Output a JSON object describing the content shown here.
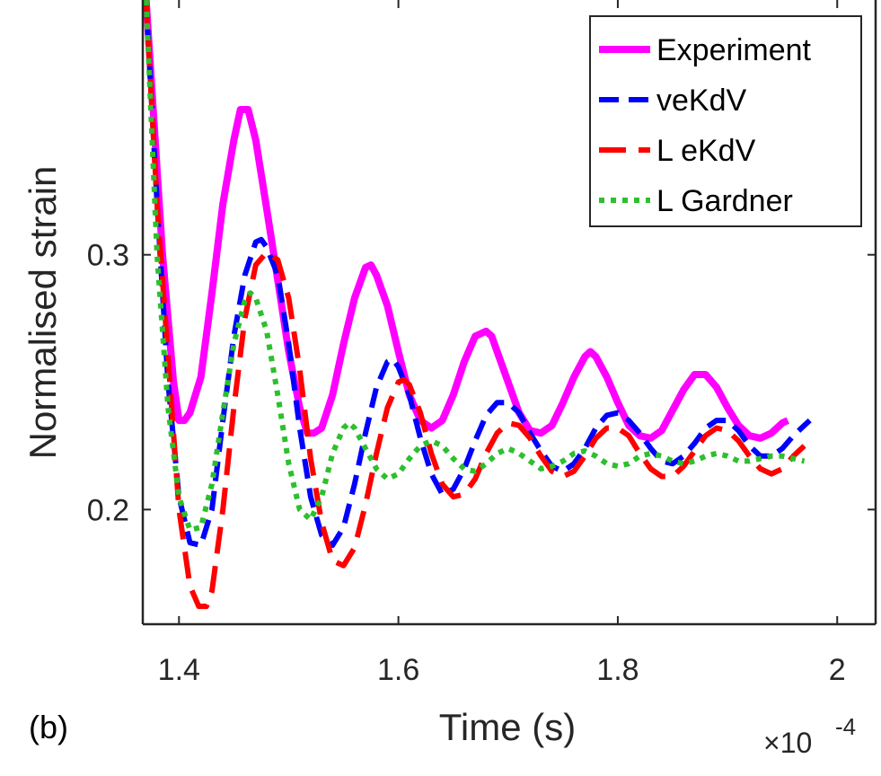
{
  "chart_data": {
    "type": "line",
    "title": "",
    "xlabel": "Time (s)",
    "ylabel": "Normalised strain",
    "panel_label": "(b)",
    "x_multiplier": {
      "base": "×10",
      "exponent": "-4"
    },
    "xlim": [
      1.367,
      2.035
    ],
    "ylim": [
      0.155,
      0.4
    ],
    "x_ticks": [
      1.4,
      1.6,
      1.8,
      2.0
    ],
    "x_tick_labels": [
      "1.4",
      "1.6",
      "1.8",
      "2"
    ],
    "y_ticks": [
      0.2,
      0.3
    ],
    "y_tick_labels": [
      "0.2",
      "0.3"
    ],
    "legend_location": "top-right",
    "series": [
      {
        "name": "Experiment",
        "color": "#ff00ff",
        "style": "solid",
        "points": [
          [
            1.37,
            0.4
          ],
          [
            1.385,
            0.3
          ],
          [
            1.395,
            0.25
          ],
          [
            1.4,
            0.235
          ],
          [
            1.405,
            0.235
          ],
          [
            1.41,
            0.238
          ],
          [
            1.42,
            0.252
          ],
          [
            1.43,
            0.285
          ],
          [
            1.44,
            0.32
          ],
          [
            1.45,
            0.345
          ],
          [
            1.456,
            0.357
          ],
          [
            1.463,
            0.357
          ],
          [
            1.47,
            0.345
          ],
          [
            1.48,
            0.318
          ],
          [
            1.49,
            0.29
          ],
          [
            1.5,
            0.262
          ],
          [
            1.51,
            0.24
          ],
          [
            1.517,
            0.23
          ],
          [
            1.523,
            0.23
          ],
          [
            1.53,
            0.232
          ],
          [
            1.54,
            0.245
          ],
          [
            1.55,
            0.265
          ],
          [
            1.56,
            0.283
          ],
          [
            1.57,
            0.295
          ],
          [
            1.575,
            0.296
          ],
          [
            1.58,
            0.292
          ],
          [
            1.59,
            0.28
          ],
          [
            1.6,
            0.262
          ],
          [
            1.61,
            0.245
          ],
          [
            1.62,
            0.235
          ],
          [
            1.63,
            0.232
          ],
          [
            1.64,
            0.235
          ],
          [
            1.65,
            0.245
          ],
          [
            1.66,
            0.258
          ],
          [
            1.67,
            0.268
          ],
          [
            1.68,
            0.27
          ],
          [
            1.685,
            0.268
          ],
          [
            1.69,
            0.262
          ],
          [
            1.7,
            0.25
          ],
          [
            1.71,
            0.238
          ],
          [
            1.72,
            0.231
          ],
          [
            1.73,
            0.23
          ],
          [
            1.74,
            0.233
          ],
          [
            1.75,
            0.242
          ],
          [
            1.76,
            0.252
          ],
          [
            1.77,
            0.26
          ],
          [
            1.775,
            0.262
          ],
          [
            1.78,
            0.26
          ],
          [
            1.79,
            0.252
          ],
          [
            1.8,
            0.242
          ],
          [
            1.81,
            0.233
          ],
          [
            1.82,
            0.229
          ],
          [
            1.83,
            0.228
          ],
          [
            1.84,
            0.231
          ],
          [
            1.85,
            0.239
          ],
          [
            1.86,
            0.247
          ],
          [
            1.87,
            0.253
          ],
          [
            1.88,
            0.253
          ],
          [
            1.89,
            0.248
          ],
          [
            1.9,
            0.24
          ],
          [
            1.91,
            0.233
          ],
          [
            1.92,
            0.229
          ],
          [
            1.93,
            0.228
          ],
          [
            1.94,
            0.23
          ],
          [
            1.95,
            0.234
          ],
          [
            1.955,
            0.235
          ]
        ]
      },
      {
        "name": "veKdV",
        "color": "#0000ff",
        "style": "dashed",
        "points": [
          [
            1.37,
            0.4
          ],
          [
            1.38,
            0.32
          ],
          [
            1.39,
            0.25
          ],
          [
            1.4,
            0.205
          ],
          [
            1.41,
            0.187
          ],
          [
            1.42,
            0.186
          ],
          [
            1.43,
            0.2
          ],
          [
            1.44,
            0.235
          ],
          [
            1.45,
            0.268
          ],
          [
            1.46,
            0.292
          ],
          [
            1.47,
            0.305
          ],
          [
            1.475,
            0.306
          ],
          [
            1.48,
            0.303
          ],
          [
            1.49,
            0.292
          ],
          [
            1.5,
            0.265
          ],
          [
            1.51,
            0.232
          ],
          [
            1.52,
            0.205
          ],
          [
            1.53,
            0.19
          ],
          [
            1.54,
            0.186
          ],
          [
            1.55,
            0.193
          ],
          [
            1.56,
            0.21
          ],
          [
            1.57,
            0.23
          ],
          [
            1.58,
            0.248
          ],
          [
            1.59,
            0.258
          ],
          [
            1.595,
            0.259
          ],
          [
            1.6,
            0.256
          ],
          [
            1.61,
            0.245
          ],
          [
            1.62,
            0.228
          ],
          [
            1.63,
            0.214
          ],
          [
            1.64,
            0.206
          ],
          [
            1.65,
            0.208
          ],
          [
            1.66,
            0.216
          ],
          [
            1.67,
            0.227
          ],
          [
            1.68,
            0.237
          ],
          [
            1.69,
            0.242
          ],
          [
            1.7,
            0.242
          ],
          [
            1.71,
            0.238
          ],
          [
            1.72,
            0.23
          ],
          [
            1.73,
            0.223
          ],
          [
            1.74,
            0.217
          ],
          [
            1.75,
            0.215
          ],
          [
            1.76,
            0.218
          ],
          [
            1.77,
            0.224
          ],
          [
            1.78,
            0.232
          ],
          [
            1.79,
            0.237
          ],
          [
            1.8,
            0.238
          ],
          [
            1.81,
            0.235
          ],
          [
            1.82,
            0.23
          ],
          [
            1.83,
            0.224
          ],
          [
            1.84,
            0.219
          ],
          [
            1.85,
            0.218
          ],
          [
            1.86,
            0.221
          ],
          [
            1.87,
            0.226
          ],
          [
            1.88,
            0.232
          ],
          [
            1.89,
            0.235
          ],
          [
            1.9,
            0.235
          ],
          [
            1.91,
            0.231
          ],
          [
            1.92,
            0.225
          ],
          [
            1.93,
            0.221
          ],
          [
            1.94,
            0.221
          ],
          [
            1.95,
            0.224
          ],
          [
            1.96,
            0.229
          ],
          [
            1.97,
            0.233
          ],
          [
            1.975,
            0.235
          ]
        ]
      },
      {
        "name": "L eKdV",
        "color": "#ff0000",
        "style": "longdash",
        "points": [
          [
            1.37,
            0.4
          ],
          [
            1.38,
            0.32
          ],
          [
            1.39,
            0.26
          ],
          [
            1.4,
            0.2
          ],
          [
            1.41,
            0.17
          ],
          [
            1.418,
            0.162
          ],
          [
            1.425,
            0.162
          ],
          [
            1.43,
            0.168
          ],
          [
            1.44,
            0.2
          ],
          [
            1.45,
            0.24
          ],
          [
            1.46,
            0.275
          ],
          [
            1.47,
            0.296
          ],
          [
            1.48,
            0.301
          ],
          [
            1.49,
            0.298
          ],
          [
            1.5,
            0.283
          ],
          [
            1.51,
            0.255
          ],
          [
            1.52,
            0.22
          ],
          [
            1.53,
            0.195
          ],
          [
            1.54,
            0.18
          ],
          [
            1.55,
            0.178
          ],
          [
            1.56,
            0.185
          ],
          [
            1.57,
            0.202
          ],
          [
            1.58,
            0.222
          ],
          [
            1.59,
            0.24
          ],
          [
            1.6,
            0.25
          ],
          [
            1.605,
            0.251
          ],
          [
            1.61,
            0.249
          ],
          [
            1.62,
            0.238
          ],
          [
            1.63,
            0.222
          ],
          [
            1.64,
            0.21
          ],
          [
            1.65,
            0.205
          ],
          [
            1.66,
            0.206
          ],
          [
            1.67,
            0.212
          ],
          [
            1.68,
            0.222
          ],
          [
            1.69,
            0.23
          ],
          [
            1.7,
            0.234
          ],
          [
            1.71,
            0.233
          ],
          [
            1.72,
            0.228
          ],
          [
            1.73,
            0.221
          ],
          [
            1.74,
            0.215
          ],
          [
            1.75,
            0.213
          ],
          [
            1.76,
            0.215
          ],
          [
            1.77,
            0.221
          ],
          [
            1.78,
            0.228
          ],
          [
            1.79,
            0.232
          ],
          [
            1.8,
            0.232
          ],
          [
            1.81,
            0.229
          ],
          [
            1.82,
            0.222
          ],
          [
            1.83,
            0.216
          ],
          [
            1.84,
            0.213
          ],
          [
            1.85,
            0.213
          ],
          [
            1.86,
            0.217
          ],
          [
            1.87,
            0.223
          ],
          [
            1.88,
            0.229
          ],
          [
            1.89,
            0.232
          ],
          [
            1.9,
            0.231
          ],
          [
            1.91,
            0.227
          ],
          [
            1.92,
            0.221
          ],
          [
            1.93,
            0.216
          ],
          [
            1.94,
            0.214
          ],
          [
            1.95,
            0.216
          ],
          [
            1.96,
            0.221
          ],
          [
            1.97,
            0.225
          ]
        ]
      },
      {
        "name": "L Gardner",
        "color": "#2dbf2d",
        "style": "dotted",
        "points": [
          [
            1.37,
            0.4
          ],
          [
            1.38,
            0.3
          ],
          [
            1.39,
            0.24
          ],
          [
            1.4,
            0.205
          ],
          [
            1.41,
            0.192
          ],
          [
            1.42,
            0.193
          ],
          [
            1.43,
            0.21
          ],
          [
            1.44,
            0.238
          ],
          [
            1.45,
            0.265
          ],
          [
            1.46,
            0.282
          ],
          [
            1.465,
            0.285
          ],
          [
            1.47,
            0.283
          ],
          [
            1.48,
            0.27
          ],
          [
            1.49,
            0.245
          ],
          [
            1.5,
            0.218
          ],
          [
            1.51,
            0.2
          ],
          [
            1.52,
            0.196
          ],
          [
            1.53,
            0.205
          ],
          [
            1.54,
            0.222
          ],
          [
            1.55,
            0.232
          ],
          [
            1.555,
            0.234
          ],
          [
            1.56,
            0.232
          ],
          [
            1.57,
            0.224
          ],
          [
            1.58,
            0.216
          ],
          [
            1.59,
            0.212
          ],
          [
            1.6,
            0.214
          ],
          [
            1.61,
            0.22
          ],
          [
            1.62,
            0.225
          ],
          [
            1.63,
            0.227
          ],
          [
            1.64,
            0.225
          ],
          [
            1.65,
            0.22
          ],
          [
            1.66,
            0.216
          ],
          [
            1.67,
            0.215
          ],
          [
            1.68,
            0.218
          ],
          [
            1.69,
            0.222
          ],
          [
            1.7,
            0.224
          ],
          [
            1.71,
            0.222
          ],
          [
            1.72,
            0.219
          ],
          [
            1.73,
            0.216
          ],
          [
            1.74,
            0.217
          ],
          [
            1.75,
            0.219
          ],
          [
            1.76,
            0.222
          ],
          [
            1.77,
            0.223
          ],
          [
            1.78,
            0.221
          ],
          [
            1.79,
            0.218
          ],
          [
            1.8,
            0.217
          ],
          [
            1.81,
            0.218
          ],
          [
            1.82,
            0.221
          ],
          [
            1.83,
            0.222
          ],
          [
            1.84,
            0.221
          ],
          [
            1.85,
            0.219
          ],
          [
            1.86,
            0.218
          ],
          [
            1.87,
            0.219
          ],
          [
            1.88,
            0.221
          ],
          [
            1.89,
            0.222
          ],
          [
            1.9,
            0.221
          ],
          [
            1.91,
            0.219
          ],
          [
            1.92,
            0.219
          ],
          [
            1.93,
            0.22
          ],
          [
            1.94,
            0.221
          ],
          [
            1.95,
            0.221
          ],
          [
            1.96,
            0.22
          ],
          [
            1.97,
            0.219
          ]
        ]
      }
    ]
  }
}
